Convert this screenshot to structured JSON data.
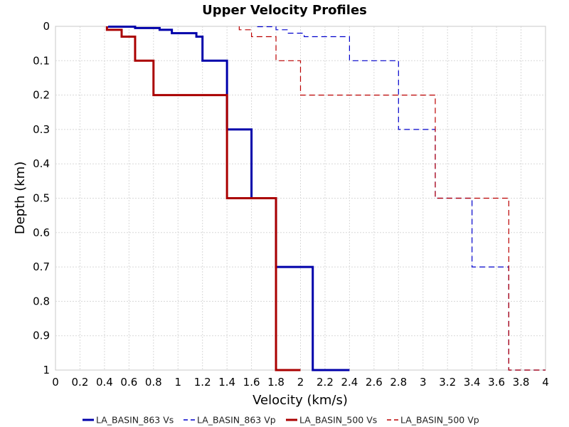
{
  "chart_data": {
    "type": "line",
    "title": "Upper Velocity Profiles",
    "xlabel": "Velocity (km/s)",
    "ylabel": "Depth (km)",
    "xlim": [
      0,
      4
    ],
    "ylim": [
      0,
      1
    ],
    "y_inverted": true,
    "grid": true,
    "legend_position": "bottom",
    "x_ticks": [
      "0",
      "0.2",
      "0.4",
      "0.6",
      "0.8",
      "1",
      "1.2",
      "1.4",
      "1.6",
      "1.8",
      "2",
      "2.2",
      "2.4",
      "2.6",
      "2.8",
      "3",
      "3.2",
      "3.4",
      "3.6",
      "3.8",
      "4"
    ],
    "y_ticks": [
      "0",
      "0.1",
      "0.2",
      "0.3",
      "0.4",
      "0.5",
      "0.6",
      "0.7",
      "0.8",
      "0.9",
      "1"
    ],
    "series": [
      {
        "name": "LA_BASIN_863 Vs",
        "color": "#0000aa",
        "style": "solid",
        "width": 3,
        "points": [
          [
            0.43,
            0
          ],
          [
            0.43,
            0.001
          ],
          [
            0.65,
            0.001
          ],
          [
            0.65,
            0.005
          ],
          [
            0.85,
            0.005
          ],
          [
            0.85,
            0.01
          ],
          [
            0.95,
            0.01
          ],
          [
            0.95,
            0.02
          ],
          [
            1.15,
            0.02
          ],
          [
            1.15,
            0.03
          ],
          [
            1.2,
            0.03
          ],
          [
            1.2,
            0.1
          ],
          [
            1.4,
            0.1
          ],
          [
            1.4,
            0.3
          ],
          [
            1.6,
            0.3
          ],
          [
            1.6,
            0.5
          ],
          [
            1.8,
            0.5
          ],
          [
            1.8,
            0.7
          ],
          [
            2.1,
            0.7
          ],
          [
            2.1,
            1.0
          ],
          [
            2.4,
            1.0
          ]
        ]
      },
      {
        "name": "LA_BASIN_863 Vp",
        "color": "#0000cc",
        "style": "dashed",
        "width": 1.2,
        "points": [
          [
            1.65,
            0
          ],
          [
            1.65,
            0.001
          ],
          [
            1.8,
            0.001
          ],
          [
            1.8,
            0.01
          ],
          [
            1.9,
            0.01
          ],
          [
            1.9,
            0.02
          ],
          [
            2.03,
            0.02
          ],
          [
            2.03,
            0.03
          ],
          [
            2.4,
            0.03
          ],
          [
            2.4,
            0.1
          ],
          [
            2.8,
            0.1
          ],
          [
            2.8,
            0.3
          ],
          [
            3.1,
            0.3
          ],
          [
            3.1,
            0.5
          ],
          [
            3.4,
            0.5
          ],
          [
            3.4,
            0.7
          ],
          [
            3.7,
            0.7
          ],
          [
            3.7,
            1.0
          ],
          [
            4.0,
            1.0
          ]
        ]
      },
      {
        "name": "LA_BASIN_500 Vs",
        "color": "#aa0000",
        "style": "solid",
        "width": 3,
        "points": [
          [
            0.42,
            0
          ],
          [
            0.42,
            0.01
          ],
          [
            0.54,
            0.01
          ],
          [
            0.54,
            0.03
          ],
          [
            0.65,
            0.03
          ],
          [
            0.65,
            0.1
          ],
          [
            0.8,
            0.1
          ],
          [
            0.8,
            0.2
          ],
          [
            1.4,
            0.2
          ],
          [
            1.4,
            0.5
          ],
          [
            1.8,
            0.5
          ],
          [
            1.8,
            1.0
          ],
          [
            2.0,
            1.0
          ]
        ]
      },
      {
        "name": "LA_BASIN_500 Vp",
        "color": "#bb0000",
        "style": "dashed",
        "width": 1.2,
        "points": [
          [
            1.5,
            0
          ],
          [
            1.5,
            0.01
          ],
          [
            1.6,
            0.01
          ],
          [
            1.6,
            0.03
          ],
          [
            1.8,
            0.03
          ],
          [
            1.8,
            0.1
          ],
          [
            2.0,
            0.1
          ],
          [
            2.0,
            0.2
          ],
          [
            3.1,
            0.2
          ],
          [
            3.1,
            0.5
          ],
          [
            3.7,
            0.5
          ],
          [
            3.7,
            1.0
          ],
          [
            4.0,
            1.0
          ]
        ]
      }
    ]
  }
}
